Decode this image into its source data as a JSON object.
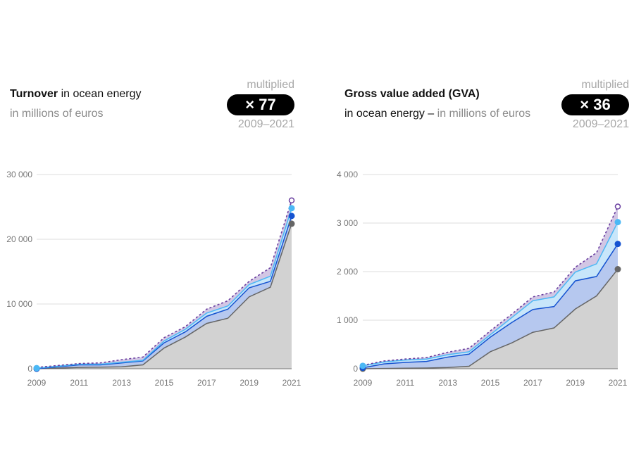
{
  "charts_text": [
    {
      "title_bold": "Turnover",
      "title_rest": " in ocean energy",
      "subtitle_dark": "",
      "subtitle_grey": "in millions of euros",
      "mult_label": "multiplied",
      "mult_value": "× 77",
      "mult_period": "2009–2021"
    },
    {
      "title_bold": "Gross value added (GVA)",
      "title_rest": "",
      "subtitle_dark": "in ocean energy – ",
      "subtitle_grey": "in millions of euros",
      "mult_label": "multiplied",
      "mult_value": "× 36",
      "mult_period": "2009–2021"
    }
  ],
  "colors": {
    "grey_line": "#666666",
    "grey_fill": "#d2d2d2",
    "blue_line": "#1553d1",
    "blue_fill": "#b6c8ef",
    "light_line": "#4bb8f5",
    "light_fill": "#c8e6fa",
    "purple_line": "#6a3fa0",
    "purple_fill": "#d2c6e4"
  },
  "chart_data": [
    {
      "type": "area",
      "title": "Turnover in ocean energy",
      "ylabel": "in millions of euros",
      "ylim": [
        0,
        30000
      ],
      "yticks": [
        0,
        10000,
        20000,
        30000
      ],
      "ytick_labels": [
        "0",
        "10 000",
        "20 000",
        "30 000"
      ],
      "x": [
        2009,
        2010,
        2011,
        2012,
        2013,
        2014,
        2015,
        2016,
        2017,
        2018,
        2019,
        2020,
        2021
      ],
      "xtick_labels": [
        "2009",
        "2011",
        "2013",
        "2015",
        "2017",
        "2019",
        "2021"
      ],
      "series": [
        {
          "name": "grey",
          "values": [
            0,
            100,
            200,
            250,
            300,
            600,
            3200,
            4900,
            7000,
            7800,
            11100,
            12600,
            22400
          ]
        },
        {
          "name": "dark-blue",
          "values": [
            0,
            300,
            600,
            600,
            900,
            1200,
            4000,
            5700,
            8100,
            9200,
            12500,
            13500,
            23600
          ]
        },
        {
          "name": "light-blue",
          "values": [
            100,
            400,
            700,
            700,
            1000,
            1300,
            4300,
            6100,
            8600,
            9700,
            13000,
            14300,
            24800
          ]
        },
        {
          "name": "purple-dashed",
          "values": [
            200,
            500,
            800,
            900,
            1400,
            1800,
            4800,
            6500,
            9200,
            10500,
            13500,
            15600,
            26000
          ]
        }
      ]
    },
    {
      "type": "area",
      "title": "Gross value added (GVA) in ocean energy",
      "ylabel": "in millions of euros",
      "ylim": [
        0,
        4000
      ],
      "yticks": [
        0,
        1000,
        2000,
        3000,
        4000
      ],
      "ytick_labels": [
        "0",
        "1 000",
        "2 000",
        "3 000",
        "4 000"
      ],
      "x": [
        2009,
        2010,
        2011,
        2012,
        2013,
        2014,
        2015,
        2016,
        2017,
        2018,
        2019,
        2020,
        2021
      ],
      "xtick_labels": [
        "2009",
        "2011",
        "2013",
        "2015",
        "2017",
        "2019",
        "2021"
      ],
      "series": [
        {
          "name": "grey",
          "values": [
            0,
            5,
            10,
            15,
            25,
            50,
            350,
            530,
            750,
            840,
            1230,
            1500,
            2050
          ]
        },
        {
          "name": "dark-blue",
          "values": [
            20,
            100,
            130,
            150,
            240,
            300,
            650,
            950,
            1220,
            1280,
            1810,
            1900,
            2570
          ]
        },
        {
          "name": "light-blue",
          "values": [
            60,
            140,
            180,
            200,
            290,
            350,
            700,
            1050,
            1400,
            1480,
            1990,
            2160,
            3020
          ]
        },
        {
          "name": "purple-dashed",
          "values": [
            70,
            160,
            200,
            230,
            340,
            420,
            780,
            1120,
            1480,
            1580,
            2090,
            2390,
            3340
          ]
        }
      ]
    }
  ]
}
